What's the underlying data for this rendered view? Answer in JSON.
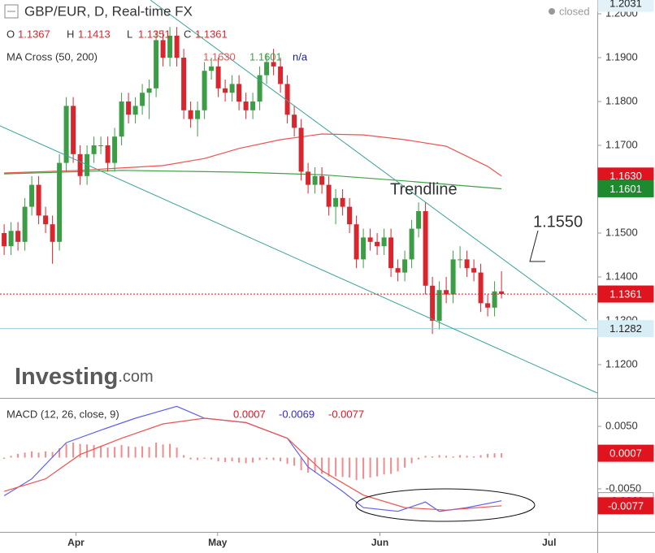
{
  "chart_data": [
    {
      "type": "candlestick",
      "title": "GBP/EUR, D, Real-time FX",
      "status": "closed",
      "ohlc_keys": [
        "O",
        "H",
        "L",
        "C"
      ],
      "up_color": "#3c9d46",
      "down_color": "#d8262e",
      "xlim": [
        -0.6,
        85.87
      ],
      "ylim": [
        1.11241,
        1.20315
      ],
      "yticks": [
        {
          "value": 1.12,
          "label": "1.1200"
        },
        {
          "value": 1.13,
          "label": "1.1300"
        },
        {
          "value": 1.14,
          "label": "1.1400"
        },
        {
          "value": 1.15,
          "label": "1.1500"
        },
        {
          "value": 1.16,
          "label": "1.1600"
        },
        {
          "value": 1.17,
          "label": "1.1700"
        },
        {
          "value": 1.18,
          "label": "1.1800"
        },
        {
          "value": 1.19,
          "label": "1.1900"
        },
        {
          "value": 1.2,
          "label": "1.2000"
        }
      ],
      "open": [
        1.15,
        1.147,
        1.1505,
        1.148,
        1.156,
        1.161,
        1.154,
        1.152,
        1.148,
        1.166,
        1.179,
        1.168,
        1.163,
        1.168,
        1.17,
        1.17,
        1.166,
        1.172,
        1.18,
        1.177,
        1.179,
        1.182,
        1.183,
        1.194,
        1.19,
        1.195,
        1.19,
        1.178,
        1.176,
        1.178,
        1.187,
        1.188,
        1.183,
        1.182,
        1.184,
        1.18,
        1.178,
        1.18,
        1.186,
        1.189,
        1.188,
        1.184,
        1.177,
        1.174,
        1.164,
        1.161,
        1.163,
        1.161,
        1.156,
        1.158,
        1.156,
        1.152,
        1.144,
        1.149,
        1.148,
        1.147,
        1.149,
        1.142,
        1.141,
        1.144,
        1.151,
        1.155,
        1.138,
        1.13,
        1.137,
        1.136,
        1.144,
        1.144,
        1.142,
        1.141,
        1.134,
        1.133,
        1.1367
      ],
      "high": [
        1.152,
        1.1525,
        1.1525,
        1.158,
        1.163,
        1.163,
        1.156,
        1.154,
        1.168,
        1.181,
        1.181,
        1.17,
        1.17,
        1.172,
        1.172,
        1.172,
        1.174,
        1.182,
        1.182,
        1.181,
        1.184,
        1.185,
        1.196,
        1.196,
        1.197,
        1.197,
        1.192,
        1.18,
        1.18,
        1.189,
        1.19,
        1.19,
        1.185,
        1.186,
        1.186,
        1.182,
        1.182,
        1.188,
        1.191,
        1.192,
        1.19,
        1.186,
        1.179,
        1.176,
        1.166,
        1.165,
        1.165,
        1.163,
        1.16,
        1.16,
        1.158,
        1.154,
        1.151,
        1.151,
        1.15,
        1.151,
        1.151,
        1.144,
        1.146,
        1.153,
        1.157,
        1.157,
        1.14,
        1.139,
        1.14,
        1.146,
        1.147,
        1.146,
        1.144,
        1.143,
        1.136,
        1.139,
        1.1413
      ],
      "low": [
        1.145,
        1.145,
        1.146,
        1.146,
        1.154,
        1.152,
        1.15,
        1.143,
        1.146,
        1.164,
        1.166,
        1.161,
        1.161,
        1.166,
        1.168,
        1.164,
        1.164,
        1.17,
        1.175,
        1.175,
        1.177,
        1.176,
        1.181,
        1.188,
        1.188,
        1.188,
        1.176,
        1.174,
        1.172,
        1.176,
        1.185,
        1.181,
        1.18,
        1.18,
        1.178,
        1.176,
        1.176,
        1.178,
        1.184,
        1.186,
        1.182,
        1.175,
        1.172,
        1.162,
        1.159,
        1.159,
        1.159,
        1.154,
        1.152,
        1.154,
        1.15,
        1.142,
        1.142,
        1.146,
        1.145,
        1.145,
        1.14,
        1.139,
        1.139,
        1.142,
        1.149,
        1.136,
        1.127,
        1.128,
        1.134,
        1.134,
        1.142,
        1.14,
        1.139,
        1.132,
        1.131,
        1.131,
        1.1351
      ],
      "close": [
        1.147,
        1.1505,
        1.148,
        1.156,
        1.161,
        1.154,
        1.152,
        1.148,
        1.166,
        1.179,
        1.168,
        1.163,
        1.168,
        1.17,
        1.17,
        1.166,
        1.172,
        1.18,
        1.177,
        1.179,
        1.182,
        1.183,
        1.194,
        1.19,
        1.195,
        1.19,
        1.178,
        1.176,
        1.178,
        1.187,
        1.188,
        1.183,
        1.182,
        1.184,
        1.18,
        1.178,
        1.18,
        1.186,
        1.189,
        1.188,
        1.184,
        1.177,
        1.174,
        1.164,
        1.161,
        1.163,
        1.161,
        1.156,
        1.158,
        1.156,
        1.152,
        1.144,
        1.149,
        1.148,
        1.147,
        1.149,
        1.142,
        1.141,
        1.144,
        1.151,
        1.155,
        1.138,
        1.13,
        1.137,
        1.136,
        1.144,
        1.144,
        1.142,
        1.141,
        1.134,
        1.133,
        1.1367,
        1.1361
      ],
      "indicator": {
        "title": "MA Cross (50, 200)",
        "na": "n/a",
        "series": [
          {
            "color": "#ef5350",
            "x": [
              0,
              11,
              23,
              29,
              34,
              40,
              46,
              52,
              58,
              64,
              70,
              72
            ],
            "values": [
              1.1637,
              1.1643,
              1.1654,
              1.167,
              1.1693,
              1.1713,
              1.1726,
              1.1724,
              1.1713,
              1.1698,
              1.1652,
              1.163
            ]
          },
          {
            "color": "#43a047",
            "x": [
              0,
              17,
              34,
              46,
              58,
              72
            ],
            "values": [
              1.1635,
              1.1643,
              1.1639,
              1.1633,
              1.1619,
              1.1601
            ]
          }
        ]
      },
      "price_labels": [
        {
          "value": 1.2031,
          "label": "1.2031",
          "bg": "#e3f1f8",
          "fg": "#222"
        },
        {
          "value": 1.163,
          "label": "1.1630",
          "bg": "#e0141e",
          "fg": "#fff"
        },
        {
          "value": 1.1601,
          "label": "1.1601",
          "bg": "#1e8a2e",
          "fg": "#fff"
        },
        {
          "value": 1.1361,
          "label": "1.1361",
          "bg": "#e0141e",
          "fg": "#fff",
          "line": "dotted"
        },
        {
          "value": 1.1282,
          "label": "1.1282",
          "bg": "#d8eef6",
          "fg": "#222",
          "line": "solid"
        }
      ],
      "annotations": [
        "Trendline",
        "1.1550"
      ],
      "watermark": [
        "Investing",
        ".com"
      ]
    },
    {
      "type": "macd",
      "title": "MACD (12, 26, close, 9)",
      "xlim": [
        -0.6,
        85.87
      ],
      "ylim": [
        -0.01188,
        0.00929
      ],
      "xticks": [
        {
          "value": 10.4,
          "label": "Apr"
        },
        {
          "value": 30.9,
          "label": "May"
        },
        {
          "value": 54.4,
          "label": "Jun"
        },
        {
          "value": 78.9,
          "label": "Jul"
        }
      ],
      "yticks": [
        {
          "value": 0.005,
          "label": "0.0050"
        },
        {
          "value": -0.005,
          "label": "-0.0050"
        }
      ],
      "histogram": {
        "color": "#f28b8b",
        "values": [
          -0.0002,
          0.0003,
          0.0006,
          0.0008,
          0.001,
          0.0008,
          0.001,
          0.0009,
          0.0015,
          0.0022,
          0.0024,
          0.0022,
          0.0021,
          0.002,
          0.0019,
          0.0016,
          0.0017,
          0.002,
          0.0018,
          0.0017,
          0.0018,
          0.0017,
          0.0024,
          0.0021,
          0.0022,
          0.0016,
          0.0004,
          -0.0003,
          -0.0004,
          -0.0002,
          -0.0003,
          -0.0006,
          -0.0007,
          -0.0006,
          -0.0008,
          -0.0009,
          -0.0008,
          -0.0004,
          -0.0003,
          -0.0004,
          -0.0006,
          -0.001,
          -0.0013,
          -0.002,
          -0.0024,
          -0.0024,
          -0.0026,
          -0.003,
          -0.003,
          -0.0031,
          -0.0032,
          -0.0036,
          -0.0034,
          -0.0032,
          -0.003,
          -0.0027,
          -0.0026,
          -0.0022,
          -0.0016,
          -0.0009,
          -0.0003,
          0.0003,
          0.0002,
          0.0004,
          0.0003,
          0.0002,
          0.0004,
          0.0003,
          0.0002,
          0.0004,
          0.0006,
          0.0007,
          0.0007
        ]
      },
      "series": [
        {
          "color": "#6060f0",
          "x": [
            0,
            4,
            9,
            14,
            19,
            25,
            29,
            35,
            41,
            44,
            49,
            52,
            57,
            61,
            63,
            67,
            72
          ],
          "values": [
            -0.0061,
            -0.0034,
            0.0024,
            0.0044,
            0.0063,
            0.0082,
            0.0063,
            0.0056,
            0.0031,
            -0.0015,
            -0.0054,
            -0.008,
            -0.0086,
            -0.0071,
            -0.0086,
            -0.008,
            -0.0069
          ]
        },
        {
          "color": "#ef5350",
          "x": [
            0,
            6,
            11,
            17,
            23,
            29,
            35,
            41,
            46,
            52,
            58,
            64,
            72
          ],
          "values": [
            -0.0054,
            -0.0034,
            0.0005,
            0.0031,
            0.0054,
            0.0063,
            0.0056,
            0.0031,
            -0.0021,
            -0.006,
            -0.008,
            -0.0084,
            -0.0077
          ]
        }
      ],
      "readouts": [
        {
          "value": 0.0007,
          "label": "0.0007",
          "color": "#e0141e"
        },
        {
          "value": -0.0069,
          "label": "-0.0069",
          "color": "#2b2bd6"
        },
        {
          "value": -0.0077,
          "label": "-0.0077",
          "color": "#e0141e"
        }
      ]
    }
  ]
}
